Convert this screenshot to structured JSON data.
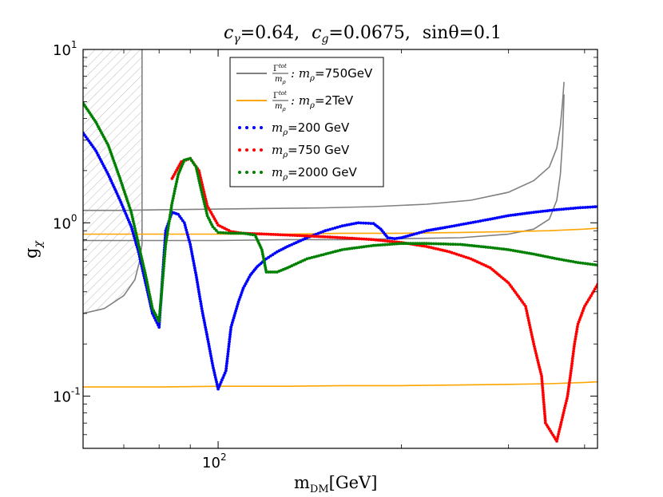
{
  "chart_data": {
    "type": "scatter",
    "title": "c_γ =0.64, c_g =0.0675, sinθ =0.1",
    "title_parts": {
      "c_gamma": "c",
      "c_gamma_sub": "γ",
      "c_gamma_val": "=0.64,",
      "c_g": "c",
      "c_g_sub": "g",
      "c_g_val": "=0.0675,",
      "sin_theta": "sinθ",
      "sin_theta_val": "=0.1"
    },
    "xlabel": "m_DM[GeV]",
    "xlabel_parts": {
      "main": "m",
      "sub": "DM",
      "unit": "[GeV]"
    },
    "ylabel": "g_χ",
    "ylabel_parts": {
      "main": "g",
      "sub": "χ"
    },
    "xscale": "log",
    "yscale": "log",
    "xlim": [
      60,
      420
    ],
    "ylim": [
      0.05,
      10
    ],
    "yticks": [
      {
        "value": 0.1,
        "base": "10",
        "exp": "-1"
      },
      {
        "value": 1,
        "base": "10",
        "exp": "0"
      },
      {
        "value": 10,
        "base": "10",
        "exp": "1"
      }
    ],
    "xticks": [
      {
        "value": 100,
        "base": "10",
        "exp": "2"
      }
    ],
    "excluded_region": {
      "xmax": 75,
      "label": "hatched exclusion"
    },
    "legend_placement": "top-center",
    "legend": [
      {
        "kind": "line",
        "color": "#808080",
        "label_main": "Γ",
        "label_sup": "tot",
        "label_den": "m",
        "label_den_sub": "ρ",
        "label_rest": ": m",
        "label_rest_sub": "ρ",
        "label_val": "=750GeV"
      },
      {
        "kind": "line",
        "color": "#FFA500",
        "label_main": "Γ",
        "label_sup": "tot",
        "label_den": "m",
        "label_den_sub": "ρ",
        "label_rest": ": m",
        "label_rest_sub": "ρ",
        "label_val": "=2TeV"
      },
      {
        "kind": "dots",
        "color": "#0000FF",
        "label_m": "m",
        "label_sub": "ρ",
        "label_val": "=200 GeV"
      },
      {
        "kind": "dots",
        "color": "#FF0000",
        "label_m": "m",
        "label_sub": "ρ",
        "label_val": "=750 GeV"
      },
      {
        "kind": "dots",
        "color": "#008000",
        "label_m": "m",
        "label_sub": "ρ",
        "label_val": "=2000 GeV"
      }
    ],
    "lines": [
      {
        "name": "Γtot/mρ : mρ=750GeV (upper)",
        "color": "#808080",
        "x": [
          60,
          70,
          80,
          100,
          120,
          150,
          180,
          220,
          260,
          300,
          330,
          350,
          360,
          365,
          368,
          370
        ],
        "y": [
          1.18,
          1.18,
          1.19,
          1.2,
          1.21,
          1.22,
          1.24,
          1.28,
          1.35,
          1.5,
          1.75,
          2.1,
          2.7,
          3.6,
          5.0,
          6.5
        ]
      },
      {
        "name": "Γtot/mρ : mρ=750GeV (lower)",
        "color": "#808080",
        "x": [
          60,
          70,
          80,
          100,
          130,
          160,
          200,
          250,
          300,
          330,
          350,
          360,
          365,
          368,
          370
        ],
        "y": [
          0.79,
          0.79,
          0.79,
          0.79,
          0.8,
          0.8,
          0.81,
          0.82,
          0.86,
          0.92,
          1.05,
          1.35,
          1.9,
          3.0,
          5.5
        ]
      },
      {
        "name": "exclusion boundary",
        "color": "#808080",
        "x": [
          60,
          65,
          70,
          73,
          74.3,
          75,
          75,
          75
        ],
        "y": [
          0.3,
          0.32,
          0.38,
          0.47,
          0.6,
          0.75,
          2.0,
          10
        ]
      },
      {
        "name": "Γtot/mρ : mρ=2TeV (upper)",
        "color": "#FFA500",
        "x": [
          60,
          80,
          100,
          130,
          160,
          200,
          250,
          300,
          350,
          400,
          420
        ],
        "y": [
          0.86,
          0.86,
          0.86,
          0.86,
          0.87,
          0.87,
          0.88,
          0.89,
          0.9,
          0.92,
          0.93
        ]
      },
      {
        "name": "Γtot/mρ : mρ=2TeV (lower)",
        "color": "#FFA500",
        "x": [
          60,
          80,
          100,
          130,
          160,
          200,
          250,
          300,
          350,
          400,
          420
        ],
        "y": [
          0.113,
          0.113,
          0.114,
          0.114,
          0.115,
          0.115,
          0.116,
          0.117,
          0.118,
          0.12,
          0.121
        ]
      }
    ],
    "series": [
      {
        "name": "mρ=200 GeV",
        "color": "#0000FF",
        "x": [
          60,
          63,
          66,
          69,
          72,
          74,
          76,
          78,
          80,
          82,
          84,
          86,
          88,
          90,
          92,
          94,
          96,
          98,
          100,
          103,
          105,
          108,
          110,
          113,
          116,
          120,
          125,
          130,
          140,
          150,
          160,
          170,
          180,
          185,
          190,
          195,
          200,
          210,
          220,
          240,
          260,
          280,
          300,
          330,
          360,
          390,
          420
        ],
        "y": [
          3.3,
          2.6,
          1.9,
          1.35,
          0.95,
          0.68,
          0.45,
          0.3,
          0.25,
          0.9,
          1.15,
          1.12,
          1.0,
          0.75,
          0.5,
          0.32,
          0.22,
          0.15,
          0.11,
          0.14,
          0.25,
          0.35,
          0.42,
          0.5,
          0.56,
          0.62,
          0.68,
          0.73,
          0.82,
          0.9,
          0.96,
          1.0,
          0.99,
          0.92,
          0.82,
          0.81,
          0.82,
          0.86,
          0.9,
          0.95,
          1.0,
          1.05,
          1.1,
          1.15,
          1.19,
          1.22,
          1.24
        ]
      },
      {
        "name": "mρ=750 GeV",
        "color": "#FF0000",
        "x": [
          84,
          87,
          90,
          93,
          96,
          100,
          105,
          110,
          120,
          130,
          140,
          150,
          160,
          180,
          200,
          220,
          240,
          260,
          280,
          300,
          320,
          330,
          340,
          345,
          360,
          375,
          380,
          385,
          390,
          400,
          410,
          420
        ],
        "y": [
          1.8,
          2.25,
          2.35,
          2.0,
          1.25,
          0.97,
          0.89,
          0.87,
          0.86,
          0.85,
          0.84,
          0.83,
          0.82,
          0.8,
          0.77,
          0.73,
          0.68,
          0.62,
          0.55,
          0.45,
          0.33,
          0.2,
          0.13,
          0.07,
          0.055,
          0.1,
          0.14,
          0.2,
          0.26,
          0.33,
          0.38,
          0.44
        ]
      },
      {
        "name": "mρ=2000 GeV",
        "color": "#008000",
        "x": [
          60,
          63,
          66,
          69,
          72,
          74,
          76,
          78,
          80,
          82,
          84,
          86,
          88,
          90,
          92,
          94,
          96,
          98,
          100,
          105,
          110,
          115,
          118,
          120,
          125,
          130,
          140,
          160,
          180,
          200,
          220,
          250,
          280,
          300,
          330,
          360,
          390,
          420
        ],
        "y": [
          4.9,
          3.8,
          2.8,
          1.8,
          1.15,
          0.75,
          0.5,
          0.32,
          0.27,
          0.75,
          1.3,
          1.9,
          2.3,
          2.35,
          2.1,
          1.5,
          1.1,
          0.95,
          0.88,
          0.87,
          0.87,
          0.85,
          0.7,
          0.52,
          0.52,
          0.55,
          0.62,
          0.7,
          0.74,
          0.76,
          0.76,
          0.75,
          0.72,
          0.7,
          0.66,
          0.62,
          0.59,
          0.57
        ]
      }
    ]
  }
}
